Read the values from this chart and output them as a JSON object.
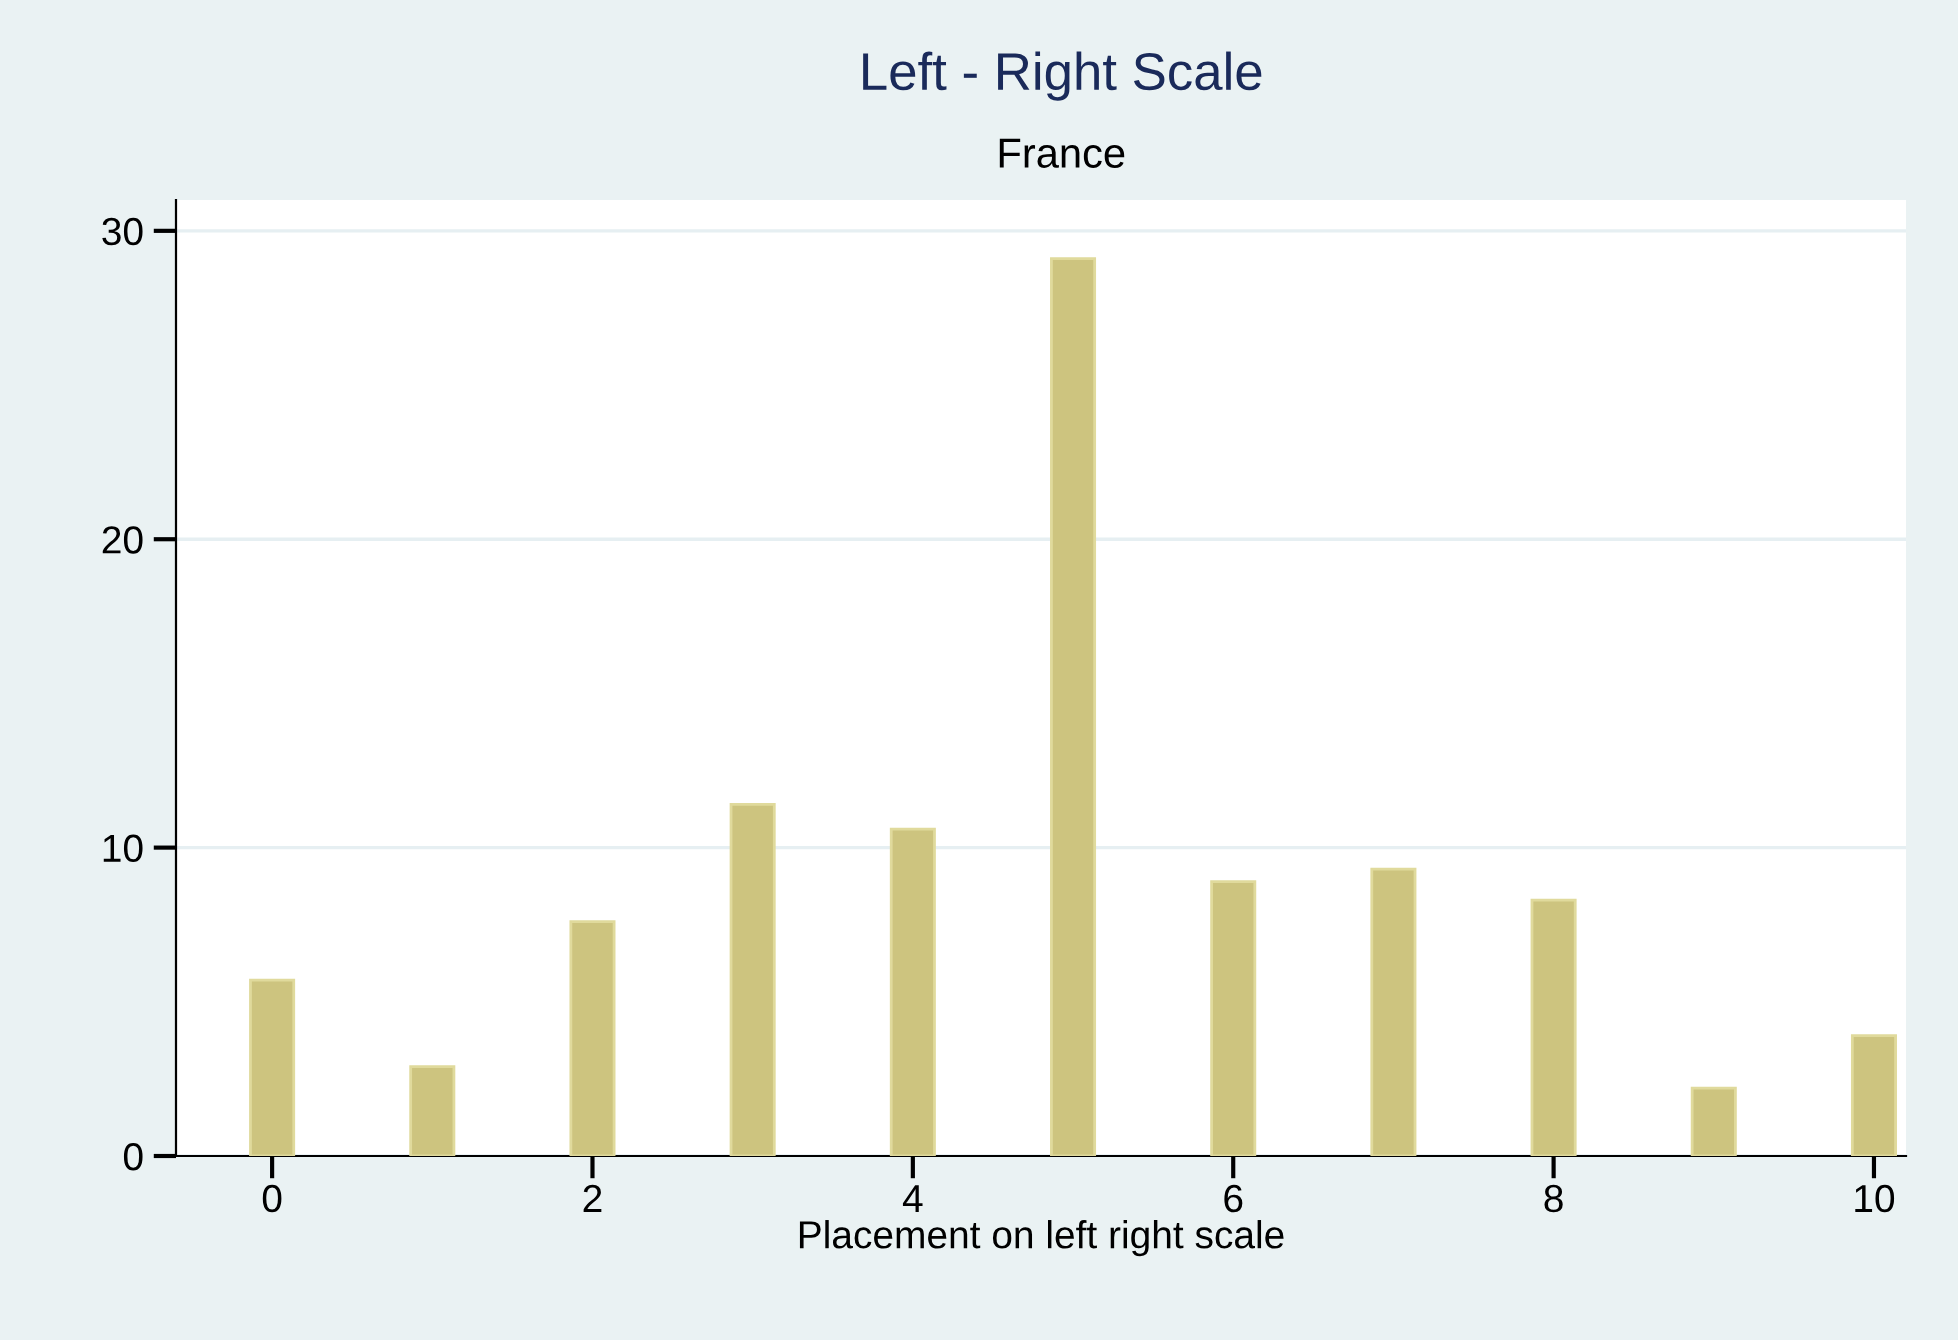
{
  "chart_data": {
    "type": "bar",
    "title": "Left - Right Scale",
    "subtitle": "France",
    "xlabel": "Placement on left right scale",
    "x": [
      0,
      1,
      2,
      3,
      4,
      5,
      6,
      7,
      8,
      9,
      10
    ],
    "values": [
      5.7,
      2.9,
      7.6,
      11.4,
      10.6,
      29.1,
      8.9,
      9.3,
      8.3,
      2.2,
      3.9
    ],
    "color": "#cdc47f",
    "xlim": [
      -0.6,
      10.2
    ],
    "xticks": [
      0,
      2,
      4,
      6,
      8,
      10
    ],
    "ylim": [
      0,
      31
    ],
    "yticks": [
      0,
      10,
      20,
      30
    ],
    "grid": "y"
  }
}
